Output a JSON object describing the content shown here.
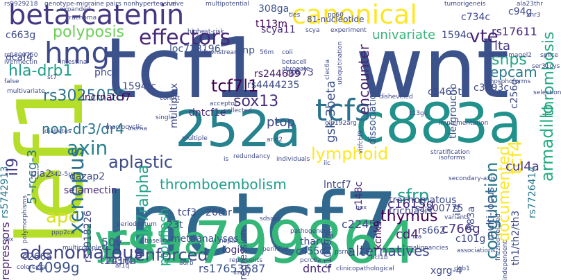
{
  "words": [
    {
      "text": "lnctcf7",
      "color": "#31688e"
    },
    {
      "text": "tcf1",
      "color": "#3b528b"
    },
    {
      "text": "wnt",
      "color": "#3b528b"
    },
    {
      "text": "rs1799864",
      "color": "#35b779"
    },
    {
      "text": "lef1",
      "color": "#b5de2b"
    },
    {
      "text": "c883a",
      "color": "#21918c"
    },
    {
      "text": "252a",
      "color": "#26828e"
    },
    {
      "text": "ly-49a",
      "color": "#35b779"
    },
    {
      "text": "hmg",
      "color": "#3e4989"
    },
    {
      "text": "beta-catenin",
      "color": "#443983"
    },
    {
      "text": "canonical",
      "color": "#fde725"
    },
    {
      "text": "tcfs",
      "color": "#2c728e"
    },
    {
      "text": "effectors",
      "color": "#482878"
    },
    {
      "text": "vte",
      "color": "#482173"
    },
    {
      "text": "polyposis",
      "color": "#6ece58"
    },
    {
      "text": "hla-drb1",
      "color": "#1f9e89"
    },
    {
      "text": "tcf7l1",
      "color": "#440154"
    },
    {
      "text": "axin",
      "color": "#26828e"
    },
    {
      "text": "non-dr3/dr4",
      "color": "#2a788e"
    },
    {
      "text": "sox13",
      "color": "#472d7b"
    },
    {
      "text": "rs3025058",
      "color": "#2c728e"
    },
    {
      "text": "xenopus",
      "color": "#2c728e"
    },
    {
      "text": "aplastic",
      "color": "#3e4989"
    },
    {
      "text": "thromboembolism",
      "color": "#1f9e89"
    },
    {
      "text": "lymphoid",
      "color": "#fde725"
    },
    {
      "text": "apc",
      "color": "#d8e219"
    },
    {
      "text": "adenomatous",
      "color": "#414487"
    },
    {
      "text": "enforced",
      "color": "#3e4989"
    },
    {
      "text": "alternatives",
      "color": "#3e4989"
    },
    {
      "text": "il-7ralpha",
      "color": "#1fa187"
    },
    {
      "text": "5'-rccg-3",
      "color": "#2a788e"
    },
    {
      "text": "c4099g",
      "color": "#3b528b"
    },
    {
      "text": "armadillo",
      "color": "#25ab82"
    },
    {
      "text": "coagulation",
      "color": "#2a788e"
    },
    {
      "text": "documented",
      "color": "#fde725"
    },
    {
      "text": "tcf4",
      "color": "#fde725"
    },
    {
      "text": "thrombosis",
      "color": "#22a884"
    },
    {
      "text": "snps",
      "color": "#22a884"
    },
    {
      "text": "epcam",
      "color": "#2a788e"
    },
    {
      "text": "lta",
      "color": "#443983"
    },
    {
      "text": "univariate",
      "color": "#35b779"
    },
    {
      "text": "rs17611",
      "color": "#482878"
    },
    {
      "text": "sfrp",
      "color": "#1f9e89"
    },
    {
      "text": "thymus",
      "color": "#440154"
    },
    {
      "text": "cul4a",
      "color": "#46327e"
    },
    {
      "text": "encounter",
      "color": "#482475"
    },
    {
      "text": "gsk-3beta",
      "color": "#3b528b"
    },
    {
      "text": "rs5742913",
      "color": "#2a788e"
    },
    {
      "text": "il9",
      "color": "#433e85"
    },
    {
      "text": "ptopflash",
      "color": "#22a884"
    },
    {
      "text": "multiplex",
      "color": "#3e4989"
    },
    {
      "text": "ptop",
      "color": "#3e4989"
    },
    {
      "text": "c1615g",
      "color": "#482878"
    },
    {
      "text": "c766g",
      "color": "#46327e"
    },
    {
      "text": "cd4",
      "color": "#481a6c"
    },
    {
      "text": "rs17653687",
      "color": "#3b528b"
    },
    {
      "text": "dntcf",
      "color": "#482878"
    },
    {
      "text": "repressors",
      "color": "#481a6c"
    },
    {
      "text": "c2245c",
      "color": "#3e4989"
    },
    {
      "text": "50v",
      "color": "#3e4989"
    },
    {
      "text": "metaanalyses",
      "color": "#3b528b"
    },
    {
      "text": "logic",
      "color": "#46327e"
    },
    {
      "text": "regression",
      "color": "#3e4989"
    },
    {
      "text": "tharu",
      "color": "#3e4989"
    },
    {
      "text": "c1019g",
      "color": "#3e4989"
    },
    {
      "text": "kcnk9",
      "color": "#440154"
    },
    {
      "text": "rs662",
      "color": "#3e4989"
    },
    {
      "text": "rs1800775",
      "color": "#3e4989"
    },
    {
      "text": "rs3918226",
      "color": "#433e85"
    },
    {
      "text": "rs244689",
      "color": "#481a6c"
    },
    {
      "text": "rs4444235",
      "color": "#3e4989"
    },
    {
      "text": "dntcf1e",
      "color": "#482878"
    },
    {
      "text": "loc728196",
      "color": "#3b528b"
    },
    {
      "text": "snp",
      "color": "#3b528b"
    },
    {
      "text": "rs673",
      "color": "#433e85"
    },
    {
      "text": "scya11",
      "color": "#482878"
    },
    {
      "text": "308ga",
      "color": "#3b528b"
    },
    {
      "text": "t113m",
      "color": "#440154"
    },
    {
      "text": "c5465t",
      "color": "#3e4989"
    },
    {
      "text": "c3893c",
      "color": "#3e4989"
    },
    {
      "text": "c734c",
      "color": "#3e4989"
    },
    {
      "text": "rs7726414",
      "color": "#2a788e"
    },
    {
      "text": "tle/groucho",
      "color": "#3b528b"
    },
    {
      "text": "dissociation",
      "color": "#3b528b"
    },
    {
      "text": "lncrnatcf7",
      "color": "#440154"
    },
    {
      "text": "pja2",
      "color": "#3e4989"
    },
    {
      "text": "dazap2",
      "color": "#3e4989"
    },
    {
      "text": "selamectin",
      "color": "#482878"
    },
    {
      "text": "phcc",
      "color": "#3e4989"
    },
    {
      "text": "dcaf4",
      "color": "#3e4989"
    },
    {
      "text": "c663g",
      "color": "#3e4989"
    },
    {
      "text": "trachomatous",
      "color": "#3e4989"
    },
    {
      "text": "trichiasis",
      "color": "#3e4989"
    },
    {
      "text": "il4",
      "color": "#3e4989"
    },
    {
      "text": "1594tc",
      "color": "#3e4989"
    },
    {
      "text": "1594c",
      "color": "#3e4989"
    },
    {
      "text": "c148c",
      "color": "#482878"
    },
    {
      "text": "multi-locus",
      "color": "#3b528b"
    },
    {
      "text": "c266a",
      "color": "#3e4989"
    },
    {
      "text": "2416a",
      "color": "#3e4989"
    },
    {
      "text": "c455c",
      "color": "#3e4989"
    },
    {
      "text": "c101g",
      "color": "#3e4989"
    },
    {
      "text": "883a",
      "color": "#3e4989"
    },
    {
      "text": "tcf3",
      "color": "#3e4989"
    },
    {
      "text": "23t",
      "color": "#3e4989"
    },
    {
      "text": "26thr",
      "color": "#3e4989"
    },
    {
      "text": "xgrg-4",
      "color": "#3e4989"
    },
    {
      "text": "c94g",
      "color": "#3e4989"
    },
    {
      "text": "c256g",
      "color": "#3e4989"
    },
    {
      "text": "th1/th2/th3",
      "color": "#3e4989"
    },
    {
      "text": "lntcf7",
      "color": "#3e4989"
    },
    {
      "text": "t113m",
      "color": "#3e4989"
    },
    {
      "text": "rs9929218",
      "color": "#3e4989"
    },
    {
      "text": "genotype-migraine pairs",
      "color": "#3e4989"
    },
    {
      "text": "nonhypertensive",
      "color": "#3e4989"
    },
    {
      "text": "naive",
      "color": "#3e4989"
    },
    {
      "text": "multipotential",
      "color": "#3e4989"
    },
    {
      "text": "81-nucleotide",
      "color": "#3e4989"
    },
    {
      "text": "tumorigeneis",
      "color": "#3e4989"
    },
    {
      "text": "ala23thr",
      "color": "#3e4989"
    },
    {
      "text": "rs1800750",
      "color": "#3e4989"
    },
    {
      "text": "ivermectin",
      "color": "#3e4989"
    },
    {
      "text": "intestinal",
      "color": "#3e4989"
    },
    {
      "text": "highest-risk",
      "color": "#3e4989"
    },
    {
      "text": "downstream",
      "color": "#3e4989"
    },
    {
      "text": "betacell",
      "color": "#3e4989"
    },
    {
      "text": "abrogate",
      "color": "#3e4989"
    },
    {
      "text": "false",
      "color": "#3e4989"
    },
    {
      "text": "multivariate",
      "color": "#3e4989"
    },
    {
      "text": "cohort",
      "color": "#3e4989"
    },
    {
      "text": "acceptor",
      "color": "#3e4989"
    },
    {
      "text": "collected",
      "color": "#3e4989"
    },
    {
      "text": "single",
      "color": "#3e4989"
    },
    {
      "text": "macrocyclic",
      "color": "#3e4989"
    },
    {
      "text": "diabetes",
      "color": "#3e4989"
    },
    {
      "text": "lncrna",
      "color": "#3e4989"
    },
    {
      "text": "multiple",
      "color": "#3e4989"
    },
    {
      "text": "redundancy",
      "color": "#3e4989"
    },
    {
      "text": "individuals",
      "color": "#3e4989"
    },
    {
      "text": "disheveled",
      "color": "#3e4989"
    },
    {
      "text": "implementation",
      "color": "#3e4989"
    },
    {
      "text": "phosphoforms",
      "color": "#3e4989"
    },
    {
      "text": "mkrn3-magel2",
      "color": "#3e4989"
    },
    {
      "text": "selection",
      "color": "#3e4989"
    },
    {
      "text": "splice",
      "color": "#3e4989"
    },
    {
      "text": "secondary-axis",
      "color": "#3e4989"
    },
    {
      "text": "stratification",
      "color": "#3e4989"
    },
    {
      "text": "isoforms",
      "color": "#3e4989"
    },
    {
      "text": "frizzled-related",
      "color": "#3e4989"
    },
    {
      "text": "variants",
      "color": "#3e4989"
    },
    {
      "text": "independent",
      "color": "#3e4989"
    },
    {
      "text": "associations",
      "color": "#3e4989"
    },
    {
      "text": "malignancies",
      "color": "#3e4989"
    },
    {
      "text": "dqb1",
      "color": "#3e4989"
    },
    {
      "text": "bcl1b",
      "color": "#3e4989"
    },
    {
      "text": "clinicopathological",
      "color": "#3e4989"
    },
    {
      "text": "psrna",
      "color": "#3e4989"
    },
    {
      "text": "pathogenesis",
      "color": "#3e4989"
    },
    {
      "text": "multicomplex",
      "color": "#3e4989"
    },
    {
      "text": "periodontum",
      "color": "#3e4989"
    },
    {
      "text": "nepal",
      "color": "#3e4989"
    },
    {
      "text": "perihilar",
      "color": "#3e4989"
    },
    {
      "text": "represents",
      "color": "#3e4989"
    },
    {
      "text": "imply",
      "color": "#3e4989"
    },
    {
      "text": "baseline",
      "color": "#3e4989"
    },
    {
      "text": "af1q",
      "color": "#3e4989"
    },
    {
      "text": "colorectal",
      "color": "#3e4989"
    },
    {
      "text": "ppp2ca",
      "color": "#3e4989"
    },
    {
      "text": "expanded",
      "color": "#3e4989"
    },
    {
      "text": "trachoma",
      "color": "#3e4989"
    },
    {
      "text": "adrb",
      "color": "#3e4989"
    },
    {
      "text": "56m",
      "color": "#3e4989"
    },
    {
      "text": "tles",
      "color": "#3e4989"
    },
    {
      "text": "pp60",
      "color": "#3e4989"
    },
    {
      "text": "scya",
      "color": "#3e4989"
    },
    {
      "text": "experiment",
      "color": "#3e4989"
    },
    {
      "text": "box",
      "color": "#3e4989"
    },
    {
      "text": "ilc",
      "color": "#3e4989"
    },
    {
      "text": "ixa",
      "color": "#3e4989"
    },
    {
      "text": "sex",
      "color": "#3e4989"
    },
    {
      "text": "342-5p",
      "color": "#3e4989"
    },
    {
      "text": "polymorphisms",
      "color": "#3e4989"
    },
    {
      "text": "st7",
      "color": "#3e4989"
    },
    {
      "text": "coli",
      "color": "#3e4989"
    },
    {
      "text": "ubiquitination",
      "color": "#3e4989"
    },
    {
      "text": "clec6a",
      "color": "#3e4989"
    },
    {
      "text": "xnr3",
      "color": "#3e4989"
    },
    {
      "text": "ser31cys",
      "color": "#3e4989"
    },
    {
      "text": "vitfcbf9",
      "color": "#3e4989"
    },
    {
      "text": "is",
      "color": "#3e4989"
    },
    {
      "text": "arid2",
      "color": "#3e4989"
    },
    {
      "text": "t13gc",
      "color": "#3e4989"
    },
    {
      "text": "gln192arg",
      "color": "#3e4989"
    },
    {
      "text": "pcrc6a",
      "color": "#3e4989"
    },
    {
      "text": "sdscaf",
      "color": "#3e4989"
    }
  ]
}
